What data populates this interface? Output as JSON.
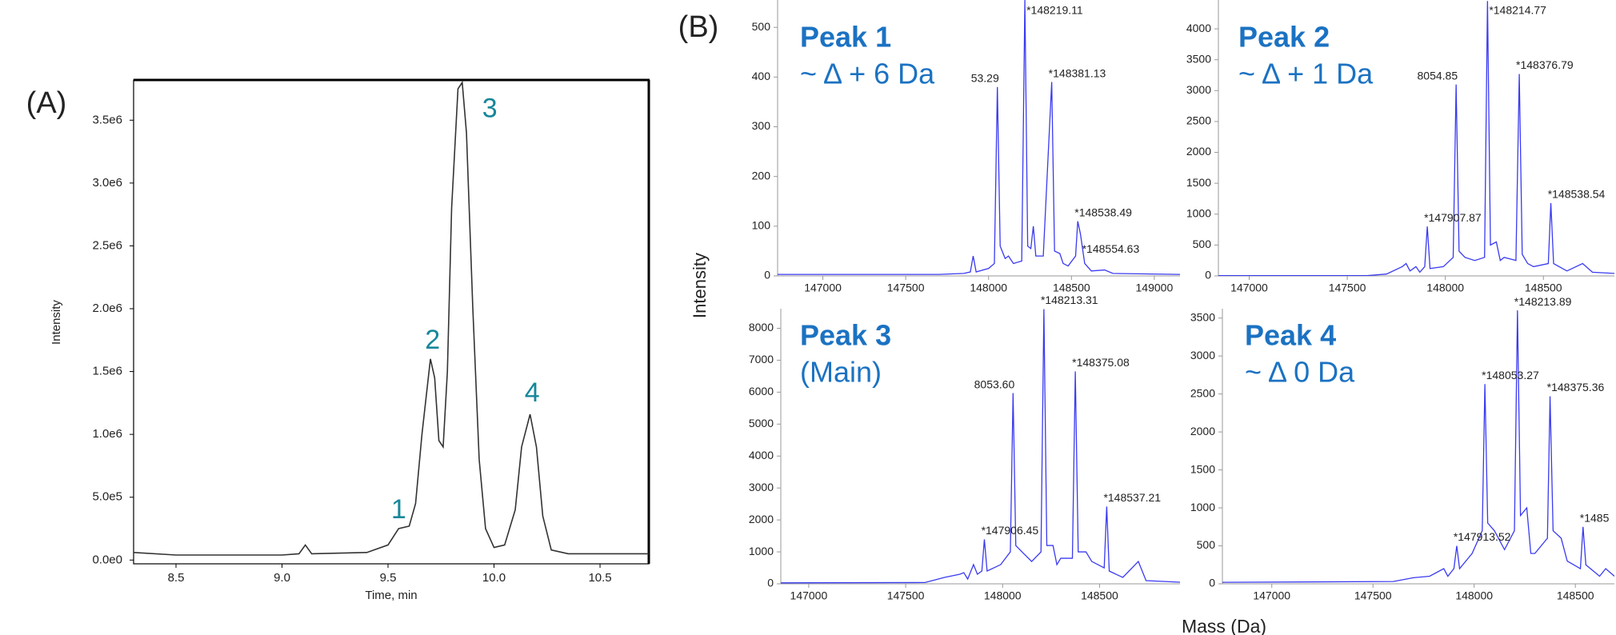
{
  "panel_b": {
    "label": "(B)",
    "ylabel": "Intensity",
    "xlabel": "Mass (Da)"
  },
  "chart_data": [
    {
      "type": "line",
      "panel_label": "(A)",
      "xlabel": "Time, min",
      "ylabel": "Intensity",
      "color": "#333333",
      "x": [
        8.3,
        8.5,
        9.0,
        9.08,
        9.11,
        9.14,
        9.4,
        9.5,
        9.55,
        9.6,
        9.63,
        9.66,
        9.69,
        9.7,
        9.72,
        9.74,
        9.76,
        9.78,
        9.8,
        9.83,
        9.85,
        9.87,
        9.9,
        9.93,
        9.96,
        10.0,
        10.05,
        10.1,
        10.13,
        10.17,
        10.2,
        10.23,
        10.27,
        10.35,
        10.73
      ],
      "values": [
        60000,
        40000,
        40000,
        50000,
        120000,
        50000,
        60000,
        120000,
        250000,
        270000,
        450000,
        1000000,
        1450000,
        1600000,
        1450000,
        950000,
        900000,
        1500000,
        2800000,
        3750000,
        3800000,
        3400000,
        2000000,
        800000,
        250000,
        100000,
        120000,
        400000,
        900000,
        1160000,
        900000,
        350000,
        80000,
        50000,
        50000
      ],
      "xlim": [
        8.3,
        10.73
      ],
      "ylim": [
        -30000,
        3820000
      ],
      "xticks": [
        8.5,
        {
          "value": 9,
          "label": "9.0"
        },
        9.5,
        {
          "value": 10,
          "label": "10.0"
        },
        10.5
      ],
      "yticks": [
        {
          "value": 0,
          "label": "0.0e0"
        },
        {
          "value": 500000,
          "label": "5.0e5"
        },
        {
          "value": 1000000,
          "label": "1.0e6"
        },
        {
          "value": 1500000,
          "label": "1.5e6"
        },
        {
          "value": 2000000,
          "label": "2.0e6"
        },
        {
          "value": 2500000,
          "label": "2.5e6"
        },
        {
          "value": 3000000,
          "label": "3.0e6"
        },
        {
          "value": 3500000,
          "label": "3.5e6"
        }
      ],
      "annotations": [
        {
          "text": "1",
          "x": 9.55,
          "y": 390000
        },
        {
          "text": "2",
          "x": 9.71,
          "y": 1740000
        },
        {
          "text": "3",
          "x": 9.98,
          "y": 3580000
        },
        {
          "text": "4",
          "x": 10.18,
          "y": 1320000
        }
      ]
    },
    {
      "type": "line",
      "title": "Peak 1",
      "subtitle": "~ Δ + 6 Da",
      "color": "#3a3af0",
      "x": [
        146727,
        147700,
        147850,
        147890,
        147907,
        147925,
        148000,
        148035,
        148053,
        148070,
        148100,
        148120,
        148150,
        148200,
        148219,
        148236,
        148255,
        148270,
        148285,
        148330,
        148381,
        148398,
        148430,
        148450,
        148480,
        148525,
        148538,
        148554,
        148580,
        148620,
        148700,
        148750,
        149155
      ],
      "values": [
        3,
        3,
        5,
        8,
        40,
        8,
        15,
        25,
        380,
        60,
        35,
        40,
        25,
        30,
        555,
        60,
        55,
        100,
        40,
        40,
        390,
        50,
        45,
        25,
        20,
        40,
        110,
        85,
        25,
        10,
        12,
        5,
        3
      ],
      "xlim": [
        146727,
        149155
      ],
      "ylim": [
        0,
        555
      ],
      "xticks": [
        147000,
        147500,
        148000,
        148500,
        149000
      ],
      "yticks": [
        0,
        100,
        200,
        300,
        400,
        500
      ],
      "annotations": [
        {
          "text": "53.29",
          "x": 148053.29,
          "y": 380
        },
        {
          "text": "*148219.11",
          "x": 148219.11,
          "y": 555
        },
        {
          "text": "*148381.13",
          "x": 148381.13,
          "y": 390
        },
        {
          "text": "*148538.49",
          "x": 148538.49,
          "y": 110
        },
        {
          "text": "*148554.63",
          "x": 148554.63,
          "y": 85
        }
      ]
    },
    {
      "type": "line",
      "title": "Peak 2",
      "subtitle": "~ Δ + 1 Da",
      "color": "#3a3af0",
      "x": [
        146843,
        147600,
        147700,
        147780,
        147800,
        147820,
        147850,
        147870,
        147895,
        147908,
        147922,
        147990,
        148040,
        148055,
        148070,
        148100,
        148150,
        148200,
        148215,
        148230,
        148260,
        148280,
        148300,
        148360,
        148377,
        148392,
        148420,
        148450,
        148525,
        148538,
        148552,
        148620,
        148700,
        148750,
        148862
      ],
      "values": [
        5,
        5,
        30,
        150,
        200,
        80,
        150,
        60,
        150,
        800,
        120,
        150,
        300,
        3100,
        400,
        300,
        250,
        300,
        4450,
        500,
        550,
        250,
        300,
        250,
        3270,
        350,
        200,
        150,
        200,
        1180,
        200,
        80,
        200,
        60,
        40
      ],
      "xlim": [
        146843,
        148862
      ],
      "ylim": [
        0,
        4467
      ],
      "xticks": [
        147000,
        147500,
        148000,
        148500
      ],
      "yticks": [
        0,
        500,
        1000,
        1500,
        2000,
        2500,
        3000,
        3500,
        4000
      ],
      "annotations": [
        {
          "text": "*147907.87",
          "x": 147907.87,
          "y": 800
        },
        {
          "text": "8054.85",
          "x": 148054.85,
          "y": 3100
        },
        {
          "text": "*148214.77",
          "x": 148214.77,
          "y": 4450
        },
        {
          "text": "*148376.79",
          "x": 148376.79,
          "y": 3270
        },
        {
          "text": "*148538.54",
          "x": 148538.54,
          "y": 1180
        }
      ]
    },
    {
      "type": "line",
      "title": "Peak 3",
      "subtitle": "(Main)",
      "color": "#3a3af0",
      "x": [
        146856,
        147600,
        147700,
        147780,
        147800,
        147820,
        147850,
        147870,
        147893,
        147906,
        147920,
        147990,
        148040,
        148054,
        148068,
        148100,
        148150,
        148198,
        148213,
        148228,
        148260,
        148280,
        148300,
        148360,
        148375,
        148390,
        148430,
        148460,
        148524,
        148537,
        148550,
        148620,
        148700,
        148740,
        148915
      ],
      "values": [
        30,
        40,
        200,
        300,
        350,
        150,
        600,
        300,
        400,
        1390,
        400,
        600,
        1000,
        5970,
        1200,
        1000,
        700,
        1000,
        8600,
        1200,
        1200,
        600,
        800,
        800,
        6650,
        1000,
        1000,
        700,
        500,
        2420,
        400,
        200,
        700,
        100,
        50
      ],
      "xlim": [
        146856,
        148915
      ],
      "ylim": [
        0,
        8613
      ],
      "xticks": [
        147000,
        147500,
        148000,
        148500
      ],
      "yticks": [
        0,
        1000,
        2000,
        3000,
        4000,
        5000,
        6000,
        7000,
        8000
      ],
      "annotations": [
        {
          "text": "*147906.45",
          "x": 147906.45,
          "y": 1390
        },
        {
          "text": "8053.60",
          "x": 148053.6,
          "y": 5970
        },
        {
          "text": "*148213.31",
          "x": 148213.31,
          "y": 8600
        },
        {
          "text": "*148375.08",
          "x": 148375.08,
          "y": 6650
        },
        {
          "text": "*148537.21",
          "x": 148537.21,
          "y": 2420
        }
      ]
    },
    {
      "type": "line",
      "title": "Peak 4",
      "subtitle": "~ Δ 0 Da",
      "color": "#3a3af0",
      "x": [
        146756,
        147600,
        147700,
        147780,
        147850,
        147870,
        147900,
        147914,
        147928,
        147990,
        148040,
        148053,
        148067,
        148100,
        148150,
        148199,
        148214,
        148229,
        148260,
        148280,
        148300,
        148362,
        148375,
        148390,
        148430,
        148460,
        148525,
        148538,
        148552,
        148620,
        148650,
        148693
      ],
      "values": [
        20,
        30,
        80,
        100,
        200,
        100,
        200,
        500,
        200,
        400,
        700,
        2630,
        800,
        700,
        450,
        700,
        3600,
        900,
        1000,
        400,
        400,
        600,
        2470,
        700,
        600,
        300,
        200,
        750,
        250,
        100,
        200,
        100
      ],
      "xlim": [
        146756,
        148693
      ],
      "ylim": [
        0,
        3623
      ],
      "xticks": [
        147000,
        147500,
        148000,
        148500
      ],
      "yticks": [
        0,
        500,
        1000,
        1500,
        2000,
        2500,
        3000,
        3500
      ],
      "annotations": [
        {
          "text": "*147913.52",
          "x": 147913.52,
          "y": 500
        },
        {
          "text": "*148053.27",
          "x": 148053.27,
          "y": 2630
        },
        {
          "text": "*148213.89",
          "x": 148213.89,
          "y": 3600
        },
        {
          "text": "*148375.36",
          "x": 148375.36,
          "y": 2470
        },
        {
          "text": "*1485",
          "x": 148538,
          "y": 750
        }
      ]
    }
  ]
}
